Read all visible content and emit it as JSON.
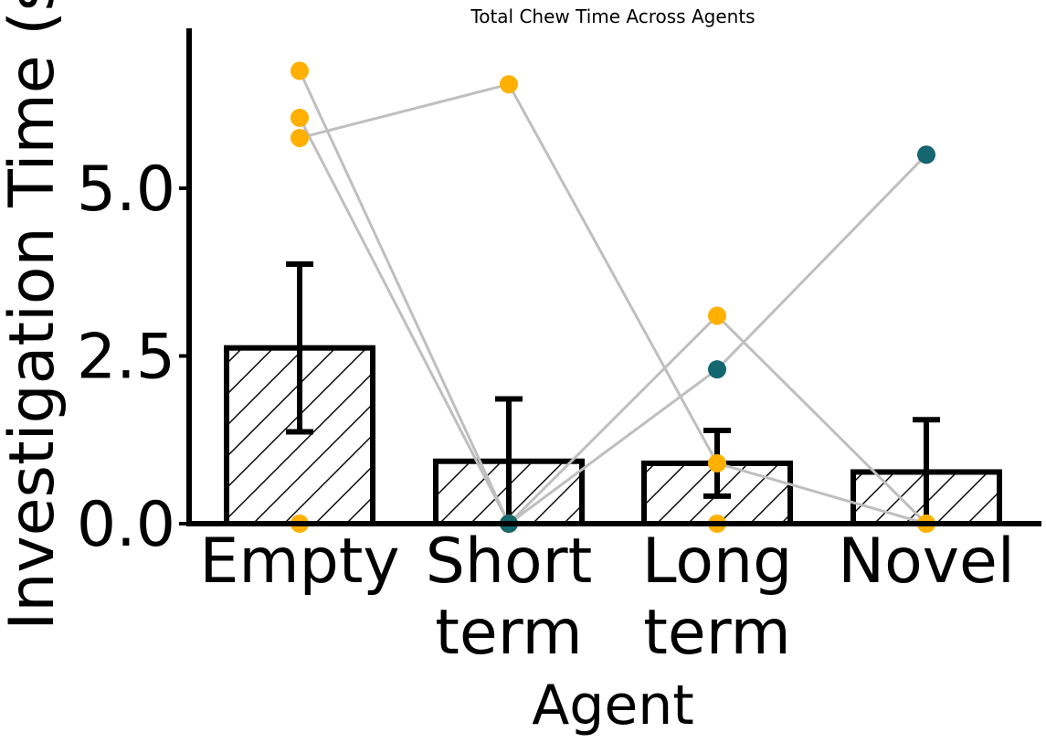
{
  "chart_data": {
    "type": "bar",
    "title": "Total Chew Time Across Agents",
    "xlabel": "Agent",
    "ylabel": "Investigation Time (s)",
    "categories": [
      [
        "Empty"
      ],
      [
        "Short",
        "term"
      ],
      [
        "Long",
        "term"
      ],
      [
        "Novel"
      ]
    ],
    "means": [
      2.62,
      0.93,
      0.9,
      0.77
    ],
    "errors": [
      1.25,
      0.93,
      0.49,
      0.78
    ],
    "ylim": [
      0,
      7.4
    ],
    "yticks": [
      "0.0",
      "2.5",
      "5.0"
    ],
    "ytick_values": [
      0,
      2.5,
      5.0
    ],
    "bar_hatch": "diagonal",
    "grid": false,
    "legend": "none",
    "subjects": [
      {
        "color": "#FFB000",
        "values": [
          6.75,
          0.0,
          0.0,
          null
        ]
      },
      {
        "color": "#FFB000",
        "values": [
          6.05,
          0.0,
          null,
          null
        ]
      },
      {
        "color": "#FFB000",
        "values": [
          5.75,
          6.55,
          0.9,
          0.0
        ]
      },
      {
        "color": "#FFB000",
        "values": [
          0.0,
          0.0,
          3.1,
          0.0
        ]
      },
      {
        "color": "#14666F",
        "values": [
          null,
          0.0,
          2.3,
          5.5
        ]
      }
    ],
    "colors": {
      "line": "#bfbfbf",
      "bar_edge": "#000000",
      "amber": "#FFB000",
      "teal": "#14666F"
    }
  }
}
